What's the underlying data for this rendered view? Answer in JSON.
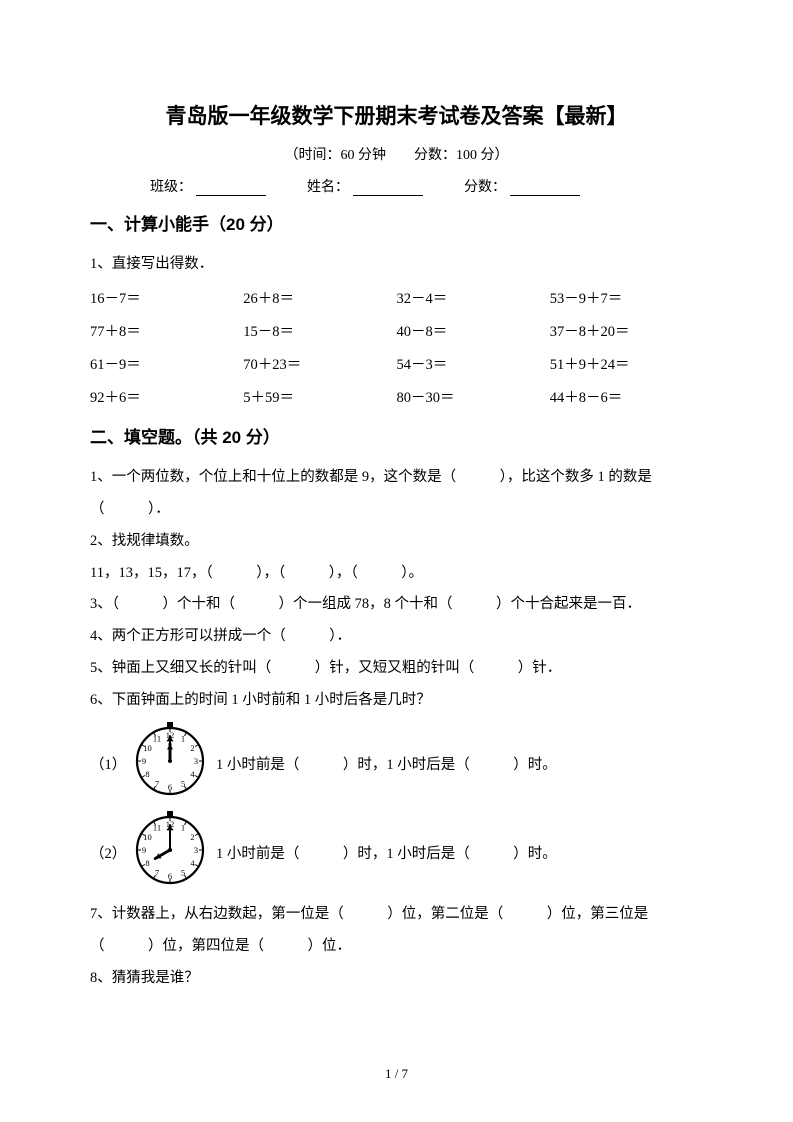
{
  "title": "青岛版一年级数学下册期末考试卷及答案【最新】",
  "subtitle": "（时间：60 分钟　　分数：100 分）",
  "info": {
    "class_label": "班级：",
    "name_label": "姓名：",
    "score_label": "分数："
  },
  "section1": {
    "heading": "一、计算小能手（20 分）",
    "q1_prompt": "1、直接写出得数．",
    "rows": [
      [
        "16－7＝",
        "26＋8＝",
        "32－4＝",
        "53－9＋7＝"
      ],
      [
        "77＋8＝",
        "15－8＝",
        "40－8＝",
        "37－8＋20＝"
      ],
      [
        "61－9＝",
        "70＋23＝",
        "54－3＝",
        "51＋9＋24＝"
      ],
      [
        "92＋6＝",
        "5＋59＝",
        "80－30＝",
        "44＋8－6＝"
      ]
    ]
  },
  "section2": {
    "heading": "二、填空题。（共 20 分）",
    "q1": "1、一个两位数，个位上和十位上的数都是 9，这个数是（　　　），比这个数多 1 的数是（　　　）．",
    "q2": "2、找规律填数。",
    "q2b": "11，13，15，17，（　　　），（　　　），（　　　）。",
    "q3": "3、（　　　）个十和（　　　）个一组成 78，8 个十和（　　　）个十合起来是一百．",
    "q4": "4、两个正方形可以拼成一个（　　　）．",
    "q5": "5、钟面上又细又长的针叫（　　　）针，又短又粗的针叫（　　　）针．",
    "q6": "6、下面钟面上的时间 1 小时前和 1 小时后各是几时？",
    "q6_1_prefix": "（1）",
    "q6_1_text": "1 小时前是（　　　）时，1 小时后是（　　　）时。",
    "q6_2_prefix": "（2）",
    "q6_2_text": "1 小时前是（　　　）时，1 小时后是（　　　）时。",
    "q7": "7、计数器上，从右边数起，第一位是（　　　）位，第二位是（　　　）位，第三位是（　　　）位，第四位是（　　　）位．",
    "q8": "8、猜猜我是谁？"
  },
  "clock1": {
    "hour_angle": 0,
    "minute_angle": 0
  },
  "clock2": {
    "hour_angle": -120,
    "minute_angle": 0
  },
  "clock_style": {
    "size": 80,
    "face_r": 33,
    "stroke": "#000000",
    "stroke_width": 2.2,
    "knob_r": 3.3,
    "hour_len": 17,
    "min_len": 25,
    "num_r": 26,
    "num_fontsize": 8.5
  },
  "page_footer": "1 / 7"
}
